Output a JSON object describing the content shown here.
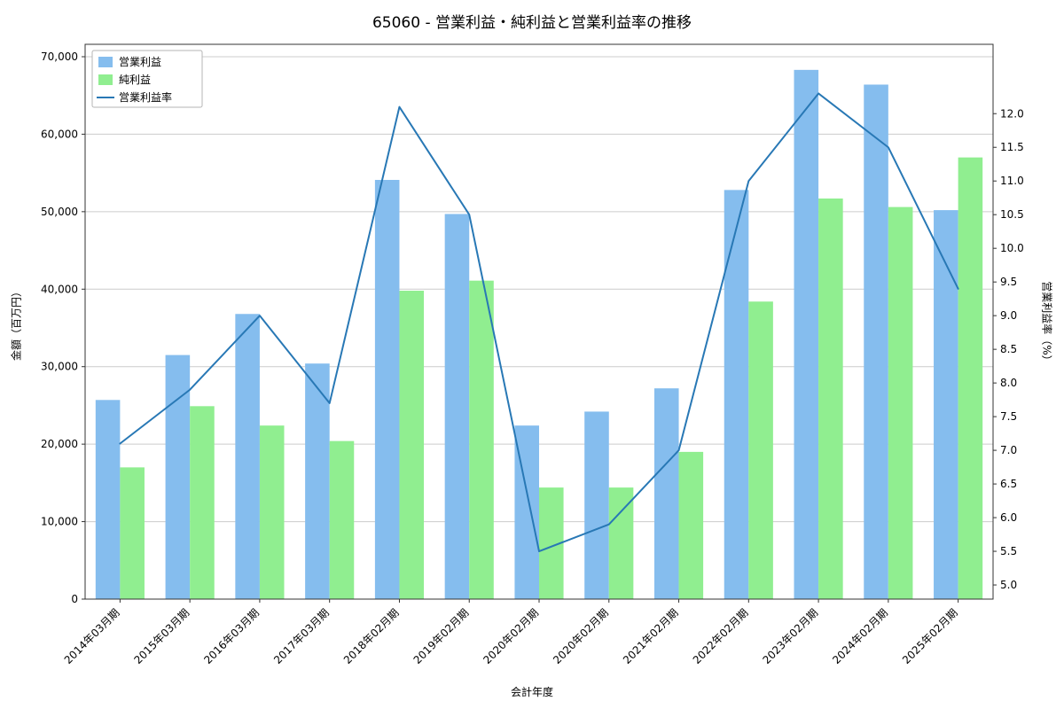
{
  "chart_data": {
    "type": "bar",
    "title": "65060 - 営業利益・純利益と営業利益率の推移",
    "xlabel": "会計年度",
    "ylabel_left": "金額（百万円）",
    "ylabel_right": "営業利益率（%）",
    "categories": [
      "2014年03月期",
      "2015年03月期",
      "2016年03月期",
      "2017年03月期",
      "2018年02月期",
      "2019年02月期",
      "2020年02月期",
      "2020年02月期",
      "2021年02月期",
      "2022年02月期",
      "2023年02月期",
      "2024年02月期",
      "2025年02月期"
    ],
    "series": [
      {
        "name": "営業利益",
        "type": "bar",
        "axis": "left",
        "color": "#85bdee",
        "values": [
          25700,
          31500,
          36800,
          30400,
          54100,
          49700,
          22400,
          24200,
          27200,
          52800,
          68300,
          66400,
          50200
        ]
      },
      {
        "name": "純利益",
        "type": "bar",
        "axis": "left",
        "color": "#90ee90",
        "values": [
          17000,
          24900,
          22400,
          20400,
          39800,
          41100,
          14400,
          14400,
          19000,
          38400,
          51700,
          50600,
          57000
        ]
      },
      {
        "name": "営業利益率",
        "type": "line",
        "axis": "right",
        "color": "#2878b5",
        "values": [
          7.1,
          7.9,
          9.0,
          7.7,
          12.1,
          10.5,
          5.5,
          5.9,
          7.0,
          11.0,
          12.3,
          11.5,
          9.4
        ]
      }
    ],
    "ylim_left": [
      0,
      71600
    ],
    "ylim_right": [
      4.79,
      13.03
    ],
    "yticks_left": [
      0,
      10000,
      20000,
      30000,
      40000,
      50000,
      60000,
      70000
    ],
    "yticks_right": [
      5.0,
      5.5,
      6.0,
      6.5,
      7.0,
      7.5,
      8.0,
      8.5,
      9.0,
      9.5,
      10.0,
      10.5,
      11.0,
      11.5,
      12.0
    ],
    "grid": true,
    "grid_color": "#cccccc",
    "spine_color": "#333333",
    "legend_position": "upper left",
    "legend_items": [
      "営業利益",
      "純利益",
      "営業利益率"
    ]
  }
}
